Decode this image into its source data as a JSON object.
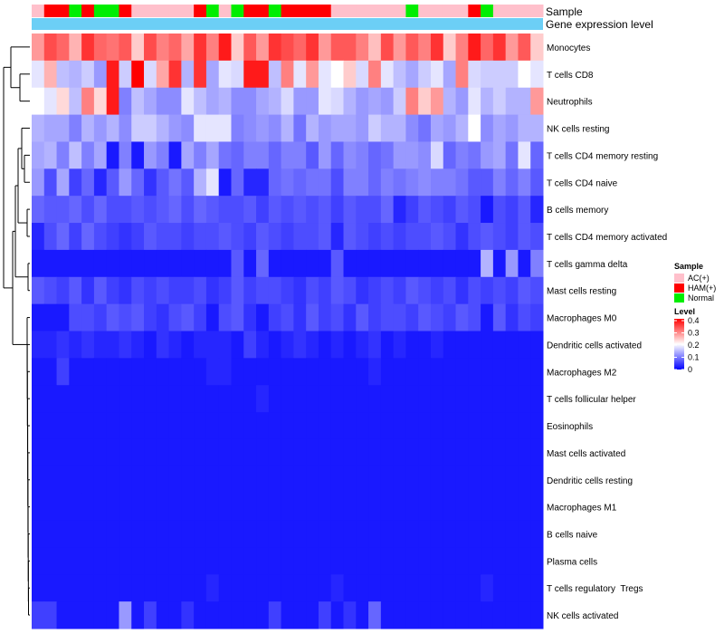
{
  "chart_data": {
    "type": "heatmap",
    "title": "",
    "annotation_tracks": {
      "sample_label": "Sample",
      "gene_label": "Gene expression level"
    },
    "sample_groups": [
      "AC(+)",
      "HAM(+)",
      "HAM(+)",
      "Normal",
      "HAM(+)",
      "Normal",
      "Normal",
      "HAM(+)",
      "AC(+)",
      "AC(+)",
      "AC(+)",
      "AC(+)",
      "AC(+)",
      "HAM(+)",
      "Normal",
      "AC(+)",
      "Normal",
      "HAM(+)",
      "HAM(+)",
      "Normal",
      "HAM(+)",
      "HAM(+)",
      "HAM(+)",
      "HAM(+)",
      "AC(+)",
      "AC(+)",
      "AC(+)",
      "AC(+)",
      "AC(+)",
      "AC(+)",
      "Normal",
      "AC(+)",
      "AC(+)",
      "AC(+)",
      "AC(+)",
      "HAM(+)",
      "Normal",
      "AC(+)",
      "AC(+)",
      "AC(+)",
      "AC(+)"
    ],
    "rows": [
      "Monocytes",
      "T cells CD8",
      "Neutrophils",
      "NK cells resting",
      "T cells CD4 memory resting",
      "T cells CD4 naive",
      "B cells memory",
      "T cells CD4 memory activated",
      "T cells gamma delta",
      "Mast cells resting",
      "Macrophages M0",
      "Dendritic cells activated",
      "Macrophages M2",
      "T cells follicular helper",
      "Eosinophils",
      "Mast cells activated",
      "Dendritic cells resting",
      "Macrophages M1",
      "B cells naive",
      "Plasma cells",
      "T cells regulatory  Tregs",
      "NK cells activated"
    ],
    "values": [
      [
        0.28,
        0.34,
        0.32,
        0.26,
        0.36,
        0.32,
        0.31,
        0.33,
        0.24,
        0.34,
        0.3,
        0.32,
        0.27,
        0.36,
        0.3,
        0.38,
        0.24,
        0.33,
        0.28,
        0.36,
        0.34,
        0.32,
        0.36,
        0.28,
        0.33,
        0.33,
        0.3,
        0.25,
        0.34,
        0.28,
        0.33,
        0.3,
        0.36,
        0.24,
        0.3,
        0.38,
        0.32,
        0.36,
        0.28,
        0.33,
        0.24
      ],
      [
        0.18,
        0.26,
        0.15,
        0.14,
        0.16,
        0.12,
        0.38,
        0.16,
        0.4,
        0.17,
        0.27,
        0.36,
        0.14,
        0.36,
        0.13,
        0.18,
        0.17,
        0.38,
        0.38,
        0.15,
        0.3,
        0.18,
        0.28,
        0.18,
        0.2,
        0.24,
        0.17,
        0.3,
        0.18,
        0.15,
        0.13,
        0.16,
        0.18,
        0.13,
        0.3,
        0.17,
        0.16,
        0.16,
        0.16,
        0.2,
        0.18
      ],
      [
        0.2,
        0.18,
        0.23,
        0.15,
        0.3,
        0.23,
        0.38,
        0.1,
        0.15,
        0.13,
        0.11,
        0.11,
        0.18,
        0.15,
        0.13,
        0.14,
        0.11,
        0.11,
        0.13,
        0.14,
        0.17,
        0.12,
        0.12,
        0.18,
        0.17,
        0.14,
        0.12,
        0.13,
        0.12,
        0.16,
        0.3,
        0.24,
        0.28,
        0.14,
        0.12,
        0.18,
        0.14,
        0.16,
        0.14,
        0.14,
        0.28
      ],
      [
        0.14,
        0.13,
        0.13,
        0.1,
        0.14,
        0.12,
        0.14,
        0.11,
        0.16,
        0.16,
        0.14,
        0.12,
        0.11,
        0.18,
        0.18,
        0.18,
        0.1,
        0.11,
        0.12,
        0.11,
        0.14,
        0.09,
        0.14,
        0.12,
        0.13,
        0.13,
        0.12,
        0.16,
        0.14,
        0.14,
        0.11,
        0.09,
        0.13,
        0.12,
        0.14,
        0.2,
        0.11,
        0.13,
        0.12,
        0.14,
        0.14
      ],
      [
        0.13,
        0.14,
        0.1,
        0.15,
        0.1,
        0.13,
        0.02,
        0.1,
        0.02,
        0.12,
        0.1,
        0.02,
        0.13,
        0.1,
        0.13,
        0.09,
        0.08,
        0.1,
        0.1,
        0.08,
        0.1,
        0.1,
        0.07,
        0.12,
        0.08,
        0.11,
        0.1,
        0.08,
        0.09,
        0.12,
        0.12,
        0.11,
        0.17,
        0.08,
        0.1,
        0.09,
        0.12,
        0.13,
        0.09,
        0.18,
        0.08
      ],
      [
        0.12,
        0.06,
        0.13,
        0.05,
        0.08,
        0.03,
        0.07,
        0.12,
        0.08,
        0.04,
        0.07,
        0.09,
        0.07,
        0.14,
        0.18,
        0.02,
        0.08,
        0.03,
        0.03,
        0.08,
        0.09,
        0.08,
        0.09,
        0.09,
        0.06,
        0.1,
        0.1,
        0.08,
        0.1,
        0.09,
        0.1,
        0.11,
        0.1,
        0.1,
        0.09,
        0.07,
        0.07,
        0.1,
        0.08,
        0.1,
        0.07
      ],
      [
        0.08,
        0.07,
        0.07,
        0.08,
        0.06,
        0.08,
        0.06,
        0.06,
        0.07,
        0.06,
        0.07,
        0.08,
        0.06,
        0.08,
        0.07,
        0.06,
        0.06,
        0.07,
        0.05,
        0.07,
        0.06,
        0.07,
        0.06,
        0.07,
        0.05,
        0.07,
        0.06,
        0.06,
        0.08,
        0.03,
        0.05,
        0.07,
        0.06,
        0.05,
        0.07,
        0.06,
        0.02,
        0.06,
        0.05,
        0.07,
        0.03
      ],
      [
        0.03,
        0.06,
        0.08,
        0.05,
        0.08,
        0.06,
        0.05,
        0.04,
        0.05,
        0.07,
        0.06,
        0.06,
        0.05,
        0.06,
        0.06,
        0.07,
        0.06,
        0.05,
        0.07,
        0.06,
        0.05,
        0.06,
        0.06,
        0.07,
        0.03,
        0.07,
        0.06,
        0.05,
        0.06,
        0.05,
        0.06,
        0.06,
        0.07,
        0.06,
        0.04,
        0.06,
        0.07,
        0.06,
        0.05,
        0.07,
        0.06
      ],
      [
        0.02,
        0.02,
        0.02,
        0.02,
        0.02,
        0.02,
        0.02,
        0.02,
        0.02,
        0.02,
        0.02,
        0.02,
        0.02,
        0.02,
        0.02,
        0.02,
        0.07,
        0.02,
        0.08,
        0.02,
        0.02,
        0.02,
        0.02,
        0.02,
        0.07,
        0.02,
        0.02,
        0.02,
        0.02,
        0.02,
        0.02,
        0.02,
        0.02,
        0.02,
        0.02,
        0.02,
        0.14,
        0.02,
        0.12,
        0.02,
        0.1
      ],
      [
        0.07,
        0.06,
        0.05,
        0.07,
        0.04,
        0.07,
        0.05,
        0.04,
        0.06,
        0.05,
        0.06,
        0.05,
        0.05,
        0.06,
        0.04,
        0.05,
        0.07,
        0.05,
        0.06,
        0.06,
        0.05,
        0.04,
        0.06,
        0.05,
        0.07,
        0.06,
        0.04,
        0.05,
        0.06,
        0.05,
        0.07,
        0.06,
        0.05,
        0.06,
        0.04,
        0.06,
        0.05,
        0.06,
        0.05,
        0.07,
        0.06
      ],
      [
        0.02,
        0.02,
        0.02,
        0.06,
        0.06,
        0.05,
        0.07,
        0.06,
        0.07,
        0.05,
        0.04,
        0.06,
        0.07,
        0.05,
        0.02,
        0.06,
        0.07,
        0.04,
        0.02,
        0.05,
        0.06,
        0.04,
        0.07,
        0.05,
        0.06,
        0.04,
        0.07,
        0.05,
        0.06,
        0.06,
        0.05,
        0.07,
        0.06,
        0.05,
        0.07,
        0.06,
        0.02,
        0.07,
        0.04,
        0.06,
        0.05
      ],
      [
        0.03,
        0.03,
        0.04,
        0.03,
        0.04,
        0.03,
        0.03,
        0.04,
        0.03,
        0.02,
        0.04,
        0.03,
        0.02,
        0.03,
        0.03,
        0.03,
        0.02,
        0.05,
        0.03,
        0.02,
        0.03,
        0.04,
        0.03,
        0.02,
        0.03,
        0.02,
        0.03,
        0.04,
        0.02,
        0.03,
        0.02,
        0.02,
        0.03,
        0.02,
        0.02,
        0.02,
        0.02,
        0.02,
        0.02,
        0.02,
        0.02
      ],
      [
        0.02,
        0.02,
        0.05,
        0.02,
        0.02,
        0.02,
        0.02,
        0.02,
        0.02,
        0.02,
        0.02,
        0.02,
        0.02,
        0.02,
        0.03,
        0.03,
        0.02,
        0.02,
        0.02,
        0.02,
        0.02,
        0.02,
        0.02,
        0.02,
        0.02,
        0.02,
        0.02,
        0.03,
        0.02,
        0.02,
        0.02,
        0.02,
        0.02,
        0.02,
        0.02,
        0.02,
        0.02,
        0.02,
        0.02,
        0.02,
        0.02
      ],
      [
        0.02,
        0.02,
        0.02,
        0.02,
        0.02,
        0.02,
        0.02,
        0.02,
        0.02,
        0.02,
        0.02,
        0.02,
        0.02,
        0.02,
        0.02,
        0.02,
        0.02,
        0.02,
        0.03,
        0.02,
        0.02,
        0.02,
        0.02,
        0.02,
        0.02,
        0.02,
        0.02,
        0.02,
        0.02,
        0.02,
        0.02,
        0.02,
        0.02,
        0.02,
        0.02,
        0.02,
        0.02,
        0.02,
        0.02,
        0.02,
        0.02
      ],
      [
        0.02,
        0.02,
        0.02,
        0.02,
        0.02,
        0.02,
        0.02,
        0.02,
        0.02,
        0.02,
        0.02,
        0.02,
        0.02,
        0.02,
        0.02,
        0.02,
        0.02,
        0.02,
        0.02,
        0.02,
        0.02,
        0.02,
        0.02,
        0.02,
        0.02,
        0.02,
        0.02,
        0.02,
        0.02,
        0.02,
        0.02,
        0.02,
        0.02,
        0.02,
        0.02,
        0.02,
        0.02,
        0.02,
        0.02,
        0.02,
        0.02
      ],
      [
        0.02,
        0.02,
        0.02,
        0.02,
        0.02,
        0.02,
        0.02,
        0.02,
        0.02,
        0.02,
        0.02,
        0.02,
        0.02,
        0.02,
        0.02,
        0.02,
        0.02,
        0.02,
        0.02,
        0.02,
        0.02,
        0.02,
        0.02,
        0.02,
        0.02,
        0.02,
        0.02,
        0.02,
        0.02,
        0.02,
        0.02,
        0.02,
        0.02,
        0.02,
        0.02,
        0.02,
        0.02,
        0.02,
        0.02,
        0.02,
        0.02
      ],
      [
        0.02,
        0.02,
        0.02,
        0.02,
        0.02,
        0.02,
        0.02,
        0.02,
        0.02,
        0.02,
        0.02,
        0.02,
        0.02,
        0.02,
        0.02,
        0.02,
        0.02,
        0.02,
        0.02,
        0.02,
        0.02,
        0.02,
        0.02,
        0.02,
        0.02,
        0.02,
        0.02,
        0.02,
        0.02,
        0.02,
        0.02,
        0.02,
        0.02,
        0.02,
        0.02,
        0.02,
        0.02,
        0.02,
        0.02,
        0.02,
        0.02
      ],
      [
        0.02,
        0.02,
        0.02,
        0.02,
        0.02,
        0.02,
        0.02,
        0.02,
        0.02,
        0.02,
        0.02,
        0.02,
        0.02,
        0.02,
        0.02,
        0.02,
        0.02,
        0.02,
        0.02,
        0.02,
        0.02,
        0.02,
        0.02,
        0.02,
        0.02,
        0.02,
        0.02,
        0.02,
        0.02,
        0.02,
        0.02,
        0.02,
        0.02,
        0.02,
        0.02,
        0.02,
        0.02,
        0.02,
        0.02,
        0.02,
        0.02
      ],
      [
        0.02,
        0.02,
        0.02,
        0.02,
        0.02,
        0.02,
        0.02,
        0.02,
        0.02,
        0.02,
        0.02,
        0.02,
        0.02,
        0.02,
        0.02,
        0.02,
        0.02,
        0.02,
        0.02,
        0.02,
        0.02,
        0.02,
        0.02,
        0.02,
        0.02,
        0.02,
        0.02,
        0.02,
        0.02,
        0.02,
        0.02,
        0.02,
        0.02,
        0.02,
        0.02,
        0.02,
        0.02,
        0.02,
        0.02,
        0.02,
        0.02
      ],
      [
        0.02,
        0.02,
        0.02,
        0.02,
        0.02,
        0.02,
        0.02,
        0.02,
        0.02,
        0.02,
        0.02,
        0.02,
        0.02,
        0.02,
        0.02,
        0.02,
        0.02,
        0.02,
        0.02,
        0.02,
        0.02,
        0.02,
        0.02,
        0.02,
        0.02,
        0.02,
        0.02,
        0.02,
        0.02,
        0.02,
        0.02,
        0.02,
        0.02,
        0.02,
        0.02,
        0.02,
        0.02,
        0.02,
        0.02,
        0.02,
        0.02
      ],
      [
        0.02,
        0.02,
        0.02,
        0.02,
        0.02,
        0.02,
        0.02,
        0.02,
        0.02,
        0.02,
        0.02,
        0.02,
        0.02,
        0.02,
        0.03,
        0.02,
        0.02,
        0.02,
        0.02,
        0.02,
        0.02,
        0.02,
        0.02,
        0.02,
        0.03,
        0.02,
        0.02,
        0.02,
        0.02,
        0.02,
        0.02,
        0.02,
        0.02,
        0.02,
        0.02,
        0.02,
        0.03,
        0.02,
        0.02,
        0.02,
        0.02
      ],
      [
        0.05,
        0.05,
        0.02,
        0.02,
        0.02,
        0.02,
        0.02,
        0.12,
        0.02,
        0.05,
        0.02,
        0.02,
        0.04,
        0.02,
        0.02,
        0.02,
        0.02,
        0.02,
        0.02,
        0.05,
        0.02,
        0.02,
        0.02,
        0.05,
        0.02,
        0.04,
        0.02,
        0.08,
        0.02,
        0.02,
        0.02,
        0.02,
        0.02,
        0.02,
        0.02,
        0.02,
        0.02,
        0.02,
        0.02,
        0.02,
        0.02
      ]
    ],
    "color_scale": {
      "min": 0,
      "max": 0.4,
      "low": "#0000ff",
      "mid": "#ffffff",
      "high": "#ff0000",
      "midpoint": 0.2
    },
    "legend": {
      "sample": {
        "title": "Sample",
        "entries": [
          {
            "label": "AC(+)",
            "color": "#ffc0cb"
          },
          {
            "label": "HAM(+)",
            "color": "#ff0000"
          },
          {
            "label": "Normal",
            "color": "#00ee00"
          }
        ]
      },
      "level": {
        "title": "Level",
        "ticks": [
          "0.4",
          "0.3",
          "0.2",
          "0.1",
          "0"
        ]
      }
    },
    "gene_track_color": "#6ccff6"
  }
}
